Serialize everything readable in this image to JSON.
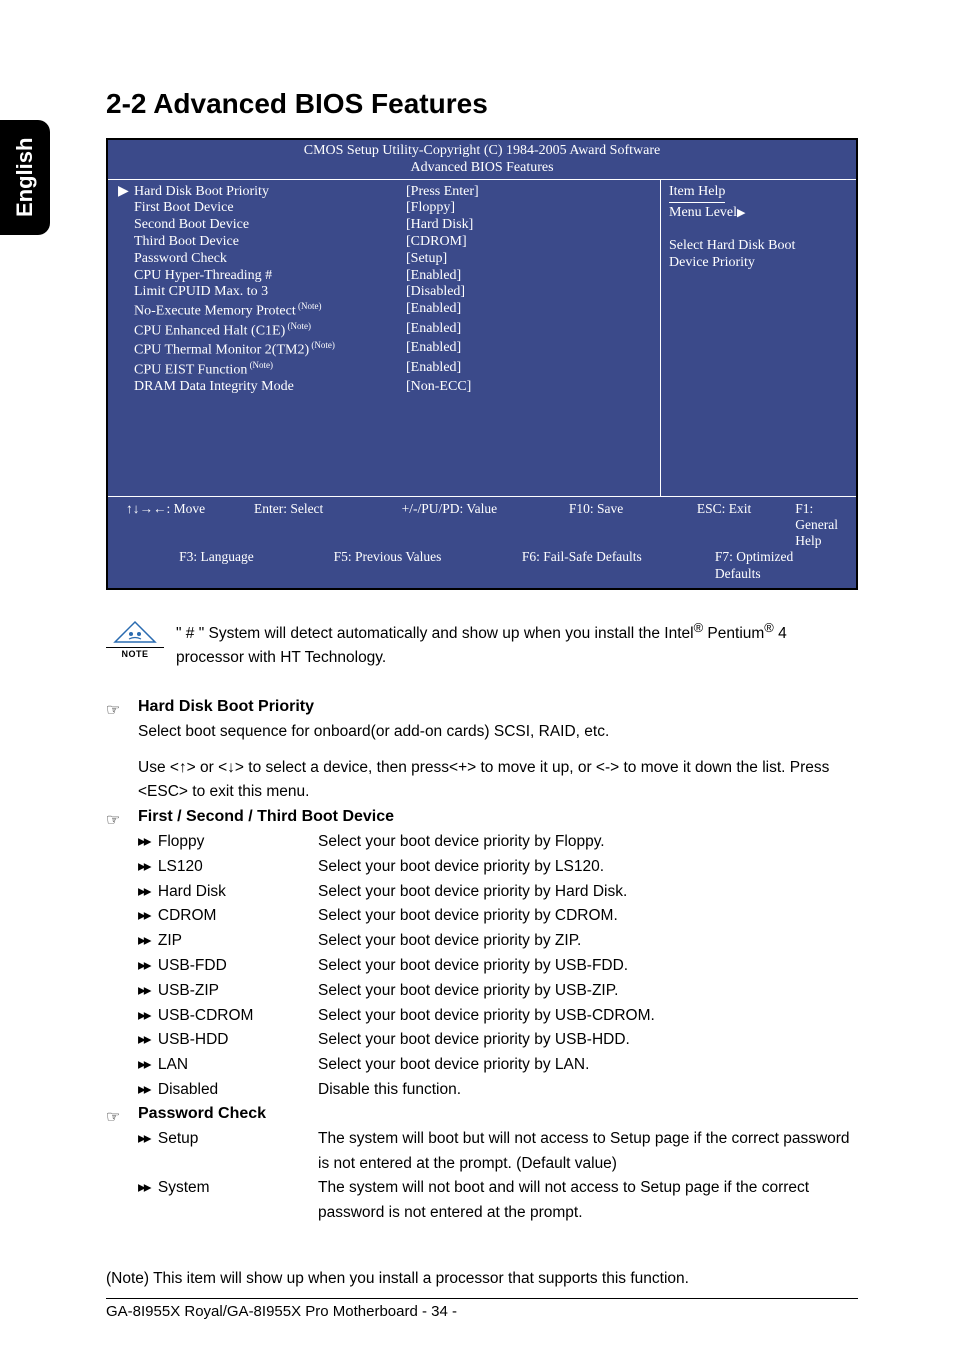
{
  "side_tab": "English",
  "heading": "2-2   Advanced BIOS Features",
  "bios": {
    "header_line1": "CMOS Setup Utility-Copyright (C) 1984-2005 Award Software",
    "header_line2": "Advanced BIOS Features",
    "rows": [
      {
        "label": "Hard Disk Boot Priority",
        "value": "[Press Enter]",
        "marker": "▶",
        "note": false
      },
      {
        "label": "First Boot Device",
        "value": "[Floppy]",
        "marker": "",
        "note": false
      },
      {
        "label": "Second Boot Device",
        "value": "[Hard Disk]",
        "marker": "",
        "note": false
      },
      {
        "label": "Third Boot Device",
        "value": "[CDROM]",
        "marker": "",
        "note": false
      },
      {
        "label": "Password Check",
        "value": "[Setup]",
        "marker": "",
        "note": false
      },
      {
        "label": "CPU Hyper-Threading #",
        "value": "[Enabled]",
        "marker": "",
        "note": false
      },
      {
        "label": "Limit CPUID Max. to 3",
        "value": "[Disabled]",
        "marker": "",
        "note": false
      },
      {
        "label": "No-Execute Memory Protect",
        "value": "[Enabled]",
        "marker": "",
        "note": true
      },
      {
        "label": "CPU Enhanced Halt (C1E)",
        "value": "[Enabled]",
        "marker": "",
        "note": true
      },
      {
        "label": "CPU Thermal Monitor 2(TM2)",
        "value": "[Enabled]",
        "marker": "",
        "note": true
      },
      {
        "label": "CPU EIST Function",
        "value": "[Enabled]",
        "marker": "",
        "note": true
      },
      {
        "label": "DRAM Data Integrity Mode",
        "value": "[Non-ECC]",
        "marker": "",
        "note": false
      }
    ],
    "note_super": "(Note)",
    "help": {
      "title": "Item Help",
      "menu_level": "Menu Level",
      "desc1": "Select Hard Disk Boot",
      "desc2": "Device Priority"
    },
    "footer": {
      "r1c1": "↑↓→←: Move",
      "r1c2": "Enter: Select",
      "r1c3": "+/-/PU/PD: Value",
      "r1c4": "F10: Save",
      "r1c5": "ESC: Exit",
      "r1c6": "F1: General Help",
      "r2c1": "F3: Language",
      "r2c2": "F5: Previous Values",
      "r2c3": "F6: Fail-Safe Defaults",
      "r2c4": "F7: Optimized Defaults"
    },
    "bg_color": "#3b4a8a"
  },
  "note_block": {
    "label": "NOTE",
    "text_before": "\" # \" System will detect automatically and show up when you install the Intel",
    "reg1": "®",
    "pentium": " Pentium",
    "reg2": "®",
    "four": " 4 processor with HT Technology."
  },
  "sections": {
    "s1": {
      "title": "Hard Disk Boot Priority",
      "p1": "Select boot sequence for onboard(or add-on cards) SCSI, RAID, etc.",
      "p2": "Use <↑> or <↓> to select a device, then press<+> to move it up, or <-> to move it down the list. Press <ESC> to exit this menu."
    },
    "s2": {
      "title": "First / Second / Third Boot Device",
      "options": [
        {
          "k": "Floppy",
          "v": "Select your boot device priority by Floppy."
        },
        {
          "k": "LS120",
          "v": "Select your boot device priority by LS120."
        },
        {
          "k": "Hard Disk",
          "v": "Select your boot device priority by Hard Disk."
        },
        {
          "k": "CDROM",
          "v": "Select your boot device priority by CDROM."
        },
        {
          "k": "ZIP",
          "v": "Select your boot device priority by ZIP."
        },
        {
          "k": "USB-FDD",
          "v": "Select your boot device priority by USB-FDD."
        },
        {
          "k": "USB-ZIP",
          "v": "Select your boot device priority by USB-ZIP."
        },
        {
          "k": "USB-CDROM",
          "v": "Select your boot device priority by USB-CDROM."
        },
        {
          "k": "USB-HDD",
          "v": "Select your boot device priority by USB-HDD."
        },
        {
          "k": "LAN",
          "v": "Select your boot device priority by LAN."
        },
        {
          "k": "Disabled",
          "v": "Disable this function."
        }
      ]
    },
    "s3": {
      "title": "Password Check",
      "options": [
        {
          "k": "Setup",
          "v": "The system will boot but will not access to Setup page if the correct password is not entered at the prompt. (Default value)"
        },
        {
          "k": "System",
          "v": "The system will not boot and will not access to Setup page if the correct password is not entered at the prompt."
        }
      ]
    }
  },
  "footer_note": "(Note)   This item will show up when you install a processor that supports this function.",
  "page_footer": "GA-8I955X Royal/GA-8I955X Pro Motherboard    - 34 -",
  "arrow_glyph": "▸▸"
}
